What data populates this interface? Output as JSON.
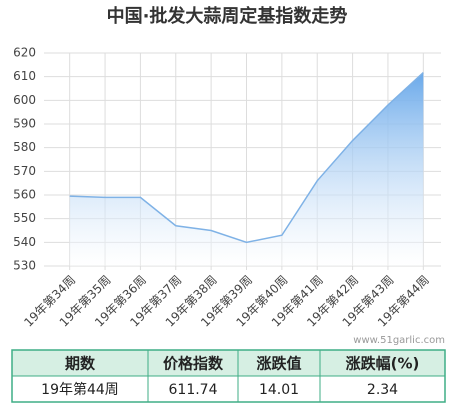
{
  "chart_data": {
    "type": "area",
    "title": "中国·批发大蒜周定基指数走势",
    "categories": [
      "19年第34周",
      "19年第35周",
      "19年第36周",
      "19年第37周",
      "19年第38周",
      "19年第39周",
      "19年第40周",
      "19年第41周",
      "19年第42周",
      "19年第43周",
      "19年第44周"
    ],
    "values": [
      559.5,
      559,
      559,
      547,
      545,
      540,
      543,
      566,
      583,
      598,
      611.74
    ],
    "color": "#7fb2e6",
    "ylim": [
      530,
      620
    ],
    "yticks": [
      530,
      540,
      550,
      560,
      570,
      580,
      590,
      600,
      610,
      620
    ],
    "grid": true,
    "watermark": "www.51garlic.com"
  },
  "table": {
    "header": [
      "期数",
      "价格指数",
      "涨跌值",
      "涨跌幅(%)"
    ],
    "rows": [
      [
        "19年第44周",
        "611.74",
        "14.01",
        "2.34"
      ]
    ]
  }
}
